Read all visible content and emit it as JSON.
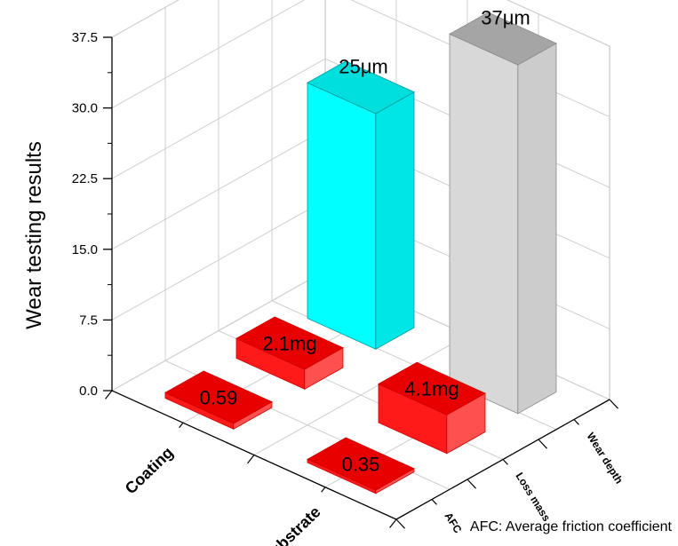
{
  "chart_data": {
    "type": "bar",
    "ylabel": "Wear testing results",
    "ylim": [
      0,
      37.5
    ],
    "yticks": [
      "0.0",
      "7.5",
      "15.0",
      "22.5",
      "30.0",
      "37.5"
    ],
    "samples": [
      "Coating",
      "Substrate"
    ],
    "metrics": [
      "AFC",
      "Loss mass",
      "Wear depth"
    ],
    "series": [
      {
        "name": "Coating",
        "values": [
          0.59,
          2.1,
          25
        ],
        "labels": [
          "0.59",
          "2.1mg",
          "25μm"
        ]
      },
      {
        "name": "Substrate",
        "values": [
          0.35,
          4.1,
          37
        ],
        "labels": [
          "0.35",
          "4.1mg",
          "37μm"
        ]
      }
    ],
    "colors": {
      "AFC": "#ff1a1a",
      "Loss mass": "#ff1a1a",
      "Wear depth Coating": "#00ffff",
      "Wear depth Substrate": "#d3d3d3"
    },
    "grid": true,
    "annotation": "AFC: Average friction coefficient"
  }
}
